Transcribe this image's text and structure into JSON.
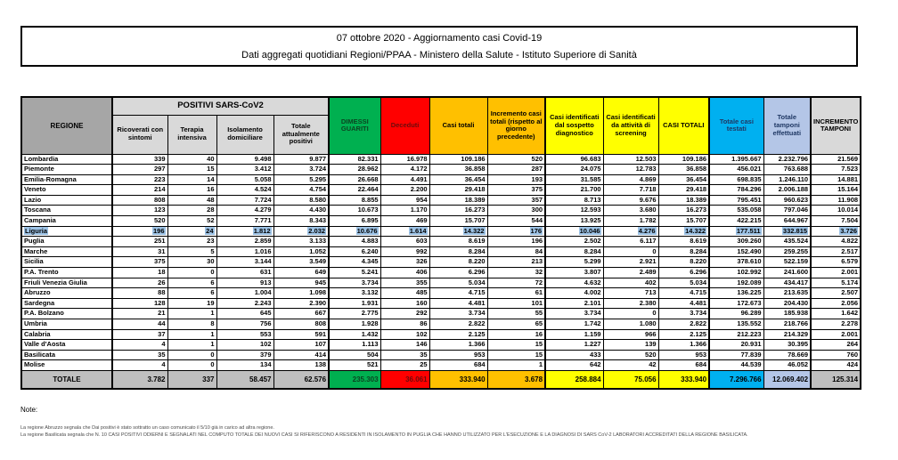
{
  "report": {
    "title_line1": "07 ottobre 2020 - Aggiornamento casi Covid-19",
    "title_line2": "Dati aggregati quotidiani Regioni/PPAA - Ministero della Salute - Istituto Superiore di Sanità"
  },
  "table": {
    "region_header": "REGIONE",
    "group_header": "POSITIVI SARS-CoV2",
    "sub_headers": [
      "Ricoverati con sintomi",
      "Terapia intensiva",
      "Isolamento domiciliare",
      "Totale attualmente positivi"
    ],
    "col_headers": [
      "DIMESSI GUARITI",
      "Deceduti",
      "Casi totali",
      "Incremento casi totali (rispetto al giorno precedente)",
      "Casi identificati dal sospetto diagnostico",
      "Casi identificati da attività di screening",
      "CASI TOTALI",
      "Totale casi testati",
      "Totale tamponi effettuati",
      "INCREMENTO TAMPONI"
    ],
    "highlighted_region": "Liguria",
    "rows": [
      {
        "region": "Lombardia",
        "values": [
          "339",
          "40",
          "9.498",
          "9.877",
          "82.331",
          "16.978",
          "109.186",
          "520",
          "96.683",
          "12.503",
          "109.186",
          "1.395.667",
          "2.232.796",
          "21.569"
        ]
      },
      {
        "region": "Piemonte",
        "values": [
          "297",
          "15",
          "3.412",
          "3.724",
          "28.962",
          "4.172",
          "36.858",
          "287",
          "24.075",
          "12.783",
          "36.858",
          "456.021",
          "763.688",
          "7.523"
        ]
      },
      {
        "region": "Emilia-Romagna",
        "values": [
          "223",
          "14",
          "5.058",
          "5.295",
          "26.668",
          "4.491",
          "36.454",
          "193",
          "31.585",
          "4.869",
          "36.454",
          "698.835",
          "1.246.110",
          "14.881"
        ]
      },
      {
        "region": "Veneto",
        "values": [
          "214",
          "16",
          "4.524",
          "4.754",
          "22.464",
          "2.200",
          "29.418",
          "375",
          "21.700",
          "7.718",
          "29.418",
          "784.296",
          "2.006.188",
          "15.164"
        ]
      },
      {
        "region": "Lazio",
        "values": [
          "808",
          "48",
          "7.724",
          "8.580",
          "8.855",
          "954",
          "18.389",
          "357",
          "8.713",
          "9.676",
          "18.389",
          "795.451",
          "960.623",
          "11.908"
        ]
      },
      {
        "region": "Toscana",
        "values": [
          "123",
          "28",
          "4.279",
          "4.430",
          "10.673",
          "1.170",
          "16.273",
          "300",
          "12.593",
          "3.680",
          "16.273",
          "535.058",
          "797.046",
          "10.014"
        ]
      },
      {
        "region": "Campania",
        "values": [
          "520",
          "52",
          "7.771",
          "8.343",
          "6.895",
          "469",
          "15.707",
          "544",
          "13.925",
          "1.782",
          "15.707",
          "422.215",
          "644.967",
          "7.504"
        ]
      },
      {
        "region": "Liguria",
        "values": [
          "196",
          "24",
          "1.812",
          "2.032",
          "10.676",
          "1.614",
          "14.322",
          "176",
          "10.046",
          "4.276",
          "14.322",
          "177.511",
          "332.815",
          "3.726"
        ]
      },
      {
        "region": "Puglia",
        "values": [
          "251",
          "23",
          "2.859",
          "3.133",
          "4.883",
          "603",
          "8.619",
          "196",
          "2.502",
          "6.117",
          "8.619",
          "309.260",
          "435.524",
          "4.822"
        ]
      },
      {
        "region": "Marche",
        "values": [
          "31",
          "5",
          "1.016",
          "1.052",
          "6.240",
          "992",
          "8.284",
          "84",
          "8.284",
          "0",
          "8.284",
          "152.490",
          "259.255",
          "2.517"
        ]
      },
      {
        "region": "Sicilia",
        "values": [
          "375",
          "30",
          "3.144",
          "3.549",
          "4.345",
          "326",
          "8.220",
          "213",
          "5.299",
          "2.921",
          "8.220",
          "378.610",
          "522.159",
          "6.579"
        ]
      },
      {
        "region": "P.A. Trento",
        "values": [
          "18",
          "0",
          "631",
          "649",
          "5.241",
          "406",
          "6.296",
          "32",
          "3.807",
          "2.489",
          "6.296",
          "102.992",
          "241.600",
          "2.001"
        ]
      },
      {
        "region": "Friuli Venezia Giulia",
        "values": [
          "26",
          "6",
          "913",
          "945",
          "3.734",
          "355",
          "5.034",
          "72",
          "4.632",
          "402",
          "5.034",
          "192.089",
          "434.417",
          "5.174"
        ]
      },
      {
        "region": "Abruzzo",
        "values": [
          "88",
          "6",
          "1.004",
          "1.098",
          "3.132",
          "485",
          "4.715",
          "61",
          "4.002",
          "713",
          "4.715",
          "136.225",
          "213.635",
          "2.507"
        ]
      },
      {
        "region": "Sardegna",
        "values": [
          "128",
          "19",
          "2.243",
          "2.390",
          "1.931",
          "160",
          "4.481",
          "101",
          "2.101",
          "2.380",
          "4.481",
          "172.673",
          "204.430",
          "2.056"
        ]
      },
      {
        "region": "P.A. Bolzano",
        "values": [
          "21",
          "1",
          "645",
          "667",
          "2.775",
          "292",
          "3.734",
          "55",
          "3.734",
          "0",
          "3.734",
          "96.289",
          "185.938",
          "1.642"
        ]
      },
      {
        "region": "Umbria",
        "values": [
          "44",
          "8",
          "756",
          "808",
          "1.928",
          "86",
          "2.822",
          "65",
          "1.742",
          "1.080",
          "2.822",
          "135.552",
          "218.766",
          "2.278"
        ]
      },
      {
        "region": "Calabria",
        "values": [
          "37",
          "1",
          "553",
          "591",
          "1.432",
          "102",
          "2.125",
          "16",
          "1.159",
          "966",
          "2.125",
          "212.223",
          "214.329",
          "2.001"
        ]
      },
      {
        "region": "Valle d'Aosta",
        "values": [
          "4",
          "1",
          "102",
          "107",
          "1.113",
          "146",
          "1.366",
          "15",
          "1.227",
          "139",
          "1.366",
          "20.931",
          "30.395",
          "264"
        ]
      },
      {
        "region": "Basilicata",
        "values": [
          "35",
          "0",
          "379",
          "414",
          "504",
          "35",
          "953",
          "15",
          "433",
          "520",
          "953",
          "77.839",
          "78.669",
          "760"
        ]
      },
      {
        "region": "Molise",
        "values": [
          "4",
          "0",
          "134",
          "138",
          "521",
          "25",
          "684",
          "1",
          "642",
          "42",
          "684",
          "44.539",
          "46.052",
          "424"
        ]
      }
    ],
    "total_row": {
      "region": "TOTALE",
      "values": [
        "3.782",
        "337",
        "58.457",
        "62.576",
        "235.303",
        "36.061",
        "333.940",
        "3.678",
        "258.884",
        "75.056",
        "333.940",
        "7.296.766",
        "12.069.402",
        "125.314"
      ]
    }
  },
  "notes": {
    "label": "Note:",
    "lines": [
      "La regione Abruzzo segnala che  Dai positivi è stato sottratto un caso comunicato il 5/10 già in carico ad altra regione.",
      "La regione Basilicata segnala che N. 10 CASI POSITIVI ODIERNI E SEGNALATI NEL COMPUTO TOTALE DEI NUOVI CASI SI RIFERISCONO A RESIDENTI IN ISOLAMENTO IN PUGLIA CHE HANNO UTILIZZATO PER L'ESECUZIONE E LA DIAGNOSI DI SARS CoV-2 LABORATORI ACCREDITATI DELLA REGIONE BASILICATA."
    ]
  },
  "colors": {
    "green": "#00B050",
    "red": "#FF0000",
    "orange": "#FFC000",
    "yellow": "#FFFF00",
    "cyan_blue": "#00B0F0",
    "periwinkle": "#B4C6E7",
    "header_gray": "#A6A6A6",
    "light_gray": "#D9D9D9",
    "total_gray": "#BFBFBF",
    "row_highlight": "#9DC3E6"
  }
}
